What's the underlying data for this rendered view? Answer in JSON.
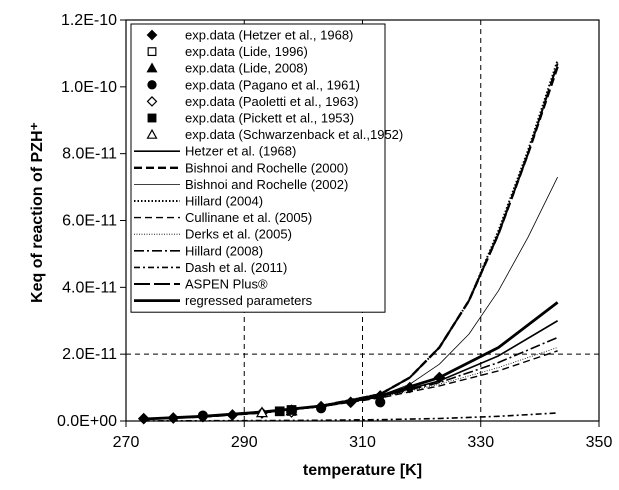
{
  "chart_data": {
    "type": "line",
    "xlabel": "temperature [K]",
    "ylabel": "Keq of reaction of PZH⁺",
    "xlim": [
      270,
      350
    ],
    "ylim": [
      0,
      1.2e-10
    ],
    "x_ticks": [
      270,
      290,
      310,
      330,
      350
    ],
    "x_tick_labels": [
      "270",
      "290",
      "310",
      "330",
      "350"
    ],
    "y_ticks": [
      0,
      2e-11,
      4e-11,
      6e-11,
      8e-11,
      1e-10,
      1.2e-10
    ],
    "y_tick_labels": [
      "0.0E+00",
      "2.0E-11",
      "4.0E-11",
      "6.0E-11",
      "8.0E-11",
      "1.0E-10",
      "1.2E-10"
    ],
    "grid": "dashed vertical at 290, 310, 330; dashed horizontal at 2.0E-11 and 1.2E-10",
    "legend_position": "top-left",
    "series": [
      {
        "name": "exp.data (Hetzer et al., 1968)",
        "kind": "marker",
        "marker": "diamond-filled",
        "x": [
          273,
          278,
          283,
          288,
          293,
          298,
          303,
          308,
          313,
          318,
          323
        ],
        "y": [
          7e-13,
          9e-13,
          1.3e-12,
          1.8e-12,
          2.4e-12,
          3.2e-12,
          4.3e-12,
          5.6e-12,
          7.5e-12,
          1e-11,
          1.3e-11
        ]
      },
      {
        "name": "exp.data (Lide, 1996)",
        "kind": "marker",
        "marker": "square-open",
        "x": [
          298
        ],
        "y": [
          3e-12
        ]
      },
      {
        "name": "exp.data (Lide, 2008)",
        "kind": "marker",
        "marker": "triangle-filled",
        "x": [
          298
        ],
        "y": [
          3.1e-12
        ]
      },
      {
        "name": "exp.data (Pagano et al., 1961)",
        "kind": "marker",
        "marker": "circle-filled",
        "x": [
          283,
          303,
          313
        ],
        "y": [
          1.6e-12,
          3.8e-12,
          5.6e-12
        ]
      },
      {
        "name": "exp.data (Paoletti et al., 1963)",
        "kind": "marker",
        "marker": "diamond-open",
        "x": [
          298
        ],
        "y": [
          2.7e-12
        ]
      },
      {
        "name": "exp.data (Pickett et al., 1953)",
        "kind": "marker",
        "marker": "square-filled",
        "x": [
          296,
          298
        ],
        "y": [
          2.9e-12,
          3.3e-12
        ]
      },
      {
        "name": "exp.data (Schwarzenback et al.,1952)",
        "kind": "marker",
        "marker": "triangle-open",
        "x": [
          293
        ],
        "y": [
          2.5e-12
        ]
      },
      {
        "name": "Hetzer et al. (1968)",
        "kind": "line",
        "dash": "",
        "width": 1.6,
        "x": [
          273,
          283,
          293,
          303,
          313,
          323,
          333,
          343
        ],
        "y": [
          6e-13,
          1.4e-12,
          2.6e-12,
          4.3e-12,
          7.3e-12,
          1.2e-11,
          1.95e-11,
          3e-11
        ]
      },
      {
        "name": "Bishnoi and Rochelle (2000)",
        "kind": "line",
        "dash": "8,4",
        "width": 2.4,
        "x": [
          273,
          283,
          293,
          303,
          313,
          318,
          323,
          328,
          333,
          338,
          343
        ],
        "y": [
          6e-13,
          1.3e-12,
          2.5e-12,
          4.5e-12,
          8e-12,
          1.3e-11,
          2.2e-11,
          3.6e-11,
          5.6e-11,
          8e-11,
          1.06e-10
        ]
      },
      {
        "name": "Bishnoi and Rochelle (2002)",
        "kind": "line",
        "dash": "",
        "width": 0.8,
        "x": [
          273,
          283,
          293,
          303,
          313,
          318,
          323,
          328,
          333,
          338,
          343
        ],
        "y": [
          6e-13,
          1.3e-12,
          2.5e-12,
          4.4e-12,
          7.6e-12,
          1.1e-11,
          1.7e-11,
          2.6e-11,
          3.9e-11,
          5.5e-11,
          7.3e-11
        ]
      },
      {
        "name": "Hillard (2004)",
        "kind": "line",
        "dash": "1.5,2",
        "width": 2,
        "x": [
          273,
          283,
          293,
          303,
          313,
          318,
          323,
          328,
          333,
          338,
          343
        ],
        "y": [
          6e-13,
          1.3e-12,
          2.5e-12,
          4.5e-12,
          8.1e-12,
          1.3e-11,
          2.2e-11,
          3.6e-11,
          5.7e-11,
          8.1e-11,
          1.08e-10
        ]
      },
      {
        "name": "Cullinane et al. (2005)",
        "kind": "line",
        "dash": "7,4",
        "width": 1.4,
        "x": [
          273,
          283,
          293,
          303,
          313,
          323,
          333,
          343
        ],
        "y": [
          6e-13,
          1.3e-12,
          2.5e-12,
          4.3e-12,
          6.9e-12,
          1.05e-11,
          1.5e-11,
          2.1e-11
        ]
      },
      {
        "name": "Derks et al. (2005)",
        "kind": "line",
        "dash": "1,1.5",
        "width": 0.8,
        "x": [
          273,
          283,
          293,
          303,
          313,
          323,
          333,
          343
        ],
        "y": [
          6e-13,
          1.3e-12,
          2.5e-12,
          4.3e-12,
          7e-12,
          1.1e-11,
          1.6e-11,
          2.2e-11
        ]
      },
      {
        "name": "Hillard (2008)",
        "kind": "line",
        "dash": "10,3,2,3",
        "width": 1.6,
        "x": [
          273,
          283,
          293,
          303,
          313,
          323,
          333,
          343
        ],
        "y": [
          6e-13,
          1.3e-12,
          2.5e-12,
          4.3e-12,
          7.2e-12,
          1.15e-11,
          1.75e-11,
          2.5e-11
        ]
      },
      {
        "name": "Dash et al. (2011)",
        "kind": "line",
        "dash": "6,3,2,3",
        "width": 1.6,
        "x": [
          273,
          283,
          293,
          303,
          313,
          323,
          333,
          343
        ],
        "y": [
          3e-14,
          7e-14,
          1.3e-13,
          2.3e-13,
          4e-13,
          7.5e-13,
          1.4e-12,
          2.4e-12
        ]
      },
      {
        "name": "ASPEN Plus®",
        "kind": "line",
        "dash": "16,4",
        "width": 2,
        "x": [
          273,
          283,
          293,
          303,
          313,
          318,
          323,
          328,
          333,
          338,
          343
        ],
        "y": [
          6e-13,
          1.3e-12,
          2.5e-12,
          4.5e-12,
          8e-12,
          1.3e-11,
          2.2e-11,
          3.6e-11,
          5.6e-11,
          8e-11,
          1.07e-10
        ]
      },
      {
        "name": "regressed parameters",
        "kind": "line",
        "dash": "",
        "width": 2.8,
        "x": [
          273,
          283,
          293,
          303,
          313,
          323,
          333,
          343
        ],
        "y": [
          6e-13,
          1.4e-12,
          2.7e-12,
          4.5e-12,
          7.5e-12,
          1.3e-11,
          2.2e-11,
          3.55e-11
        ]
      }
    ]
  }
}
